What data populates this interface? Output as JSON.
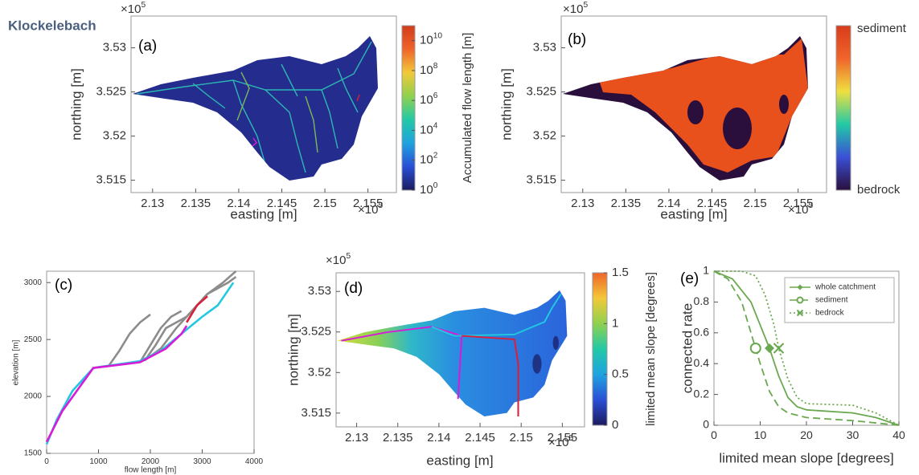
{
  "header": {
    "title": "Klockelebach"
  },
  "chart_data": [
    {
      "type": "map",
      "panel_label": "(a)",
      "xlabel": "easting [m]",
      "ylabel": "northing [m]",
      "x_multiplier": {
        "base": "×10",
        "power": "5"
      },
      "y_multiplier": {
        "base": "×10",
        "power": "5"
      },
      "xlim": [
        2.1275,
        2.1583
      ],
      "ylim": [
        3.5136,
        3.5336
      ],
      "xticks": [
        2.13,
        2.135,
        2.14,
        2.145,
        2.15,
        2.155
      ],
      "yticks": [
        3.515,
        3.52,
        3.525,
        3.53
      ],
      "colorbar": {
        "label": "Accumulated flow length [m]",
        "log_scale": true,
        "lim": [
          1,
          100000000000.0
        ],
        "ticks": [
          {
            "value": 1,
            "label": "10",
            "power": "0"
          },
          {
            "value": 100,
            "label": "10",
            "power": "2"
          },
          {
            "value": 10000,
            "label": "10",
            "power": "4"
          },
          {
            "value": 1000000,
            "label": "10",
            "power": "6"
          },
          {
            "value": 100000000,
            "label": "10",
            "power": "8"
          },
          {
            "value": 10000000000,
            "label": "10",
            "power": "10"
          }
        ],
        "colors": [
          "#1b1b5e",
          "#2a4fd6",
          "#1fa3e0",
          "#22c9a6",
          "#8fd14f",
          "#f2c938",
          "#f0642a",
          "#d23b1b"
        ]
      }
    },
    {
      "type": "map",
      "panel_label": "(b)",
      "xlabel": "easting [m]",
      "ylabel": "northing [m]",
      "x_multiplier": {
        "base": "×10",
        "power": "5"
      },
      "y_multiplier": {
        "base": "×10",
        "power": "5"
      },
      "xlim": [
        2.1275,
        2.1583
      ],
      "ylim": [
        3.5136,
        3.5336
      ],
      "xticks": [
        2.13,
        2.135,
        2.14,
        2.145,
        2.15,
        2.155
      ],
      "yticks": [
        3.515,
        3.52,
        3.525,
        3.53
      ],
      "colorbar": {
        "top_label": "sediment",
        "bottom_label": "bedrock",
        "colors": [
          "#2a0f3d",
          "#3b4fd6",
          "#22c9a6",
          "#f0e040",
          "#f0642a",
          "#d93b1b"
        ]
      }
    },
    {
      "type": "line",
      "panel_label": "(c)",
      "xlabel": "flow length [m]",
      "ylabel": "elevation [m]",
      "xlim": [
        0,
        4000
      ],
      "ylim": [
        1500,
        3100
      ],
      "xticks": [
        0,
        1000,
        2000,
        3000,
        4000
      ],
      "yticks": [
        1500,
        2000,
        2500,
        3000
      ],
      "series": [
        {
          "color": "#8c8c8c",
          "x": [
            900,
            1200,
            1600,
            1900,
            2200,
            2500,
            2800,
            3100,
            3400,
            3650
          ],
          "values": [
            2250,
            2270,
            2290,
            2320,
            2420,
            2600,
            2750,
            2900,
            3000,
            3100
          ]
        },
        {
          "color": "#8c8c8c",
          "x": [
            1900,
            2100,
            2300,
            2500,
            2700,
            2900,
            3100,
            3300,
            3500,
            3650
          ],
          "values": [
            2320,
            2450,
            2600,
            2650,
            2700,
            2800,
            2900,
            2950,
            3000,
            3050
          ]
        },
        {
          "color": "#8c8c8c",
          "x": [
            1200,
            1400,
            1600,
            1800,
            2000
          ],
          "values": [
            2270,
            2400,
            2550,
            2650,
            2720
          ]
        },
        {
          "color": "#8c8c8c",
          "x": [
            1800,
            2000,
            2200,
            2400,
            2600
          ],
          "values": [
            2300,
            2450,
            2600,
            2700,
            2750
          ]
        },
        {
          "color": "#22c7e0",
          "x": [
            0,
            200,
            500,
            900,
            1200,
            1800,
            2200,
            2600,
            3000,
            3300,
            3600
          ],
          "values": [
            1580,
            1800,
            2050,
            2250,
            2270,
            2310,
            2400,
            2550,
            2700,
            2800,
            3000
          ]
        },
        {
          "color": "#d81bd8",
          "x": [
            0,
            300,
            900,
            1800,
            2300,
            2600,
            2700
          ],
          "values": [
            1600,
            1870,
            2250,
            2300,
            2420,
            2550,
            2620
          ]
        },
        {
          "color": "#d8203a",
          "x": [
            2700,
            2900,
            3100
          ],
          "values": [
            2650,
            2800,
            2880
          ]
        }
      ]
    },
    {
      "type": "map",
      "panel_label": "(d)",
      "xlabel": "easting [m]",
      "ylabel": "northing [m]",
      "x_multiplier": {
        "base": "×10",
        "power": "5"
      },
      "y_multiplier": {
        "base": "×10",
        "power": "5"
      },
      "xlim": [
        2.1275,
        2.1577
      ],
      "ylim": [
        3.5133,
        3.5323
      ],
      "xticks": [
        2.13,
        2.135,
        2.14,
        2.145,
        2.15,
        2.155
      ],
      "yticks": [
        3.515,
        3.52,
        3.525,
        3.53
      ],
      "colorbar": {
        "label": "limited mean slope [degrees]",
        "log_scale": false,
        "lim": [
          0,
          1.5
        ],
        "ticks": [
          0,
          0.5,
          1,
          1.5
        ],
        "colors": [
          "#1b1b5e",
          "#2a4fd6",
          "#1fa3e0",
          "#22c9a6",
          "#8fd14f",
          "#f2c938",
          "#f0642a"
        ]
      }
    },
    {
      "type": "line",
      "panel_label": "(e)",
      "xlabel": "limited mean slope [degrees]",
      "ylabel": "connected rate",
      "xlim": [
        0,
        40
      ],
      "ylim": [
        0,
        1
      ],
      "xticks": [
        0,
        10,
        20,
        30,
        40
      ],
      "yticks": [
        0,
        0.2,
        0.4,
        0.6,
        0.8,
        1
      ],
      "legend": "upper right",
      "series": [
        {
          "name": "whole catchment",
          "color": "#6aa84f",
          "dash": "solid",
          "marker": {
            "symbol": "diamond",
            "x": 12,
            "y": 0.5
          },
          "x": [
            0,
            4,
            8,
            10,
            12,
            14,
            16,
            18,
            20,
            30,
            35,
            40
          ],
          "values": [
            1,
            0.95,
            0.8,
            0.65,
            0.5,
            0.32,
            0.18,
            0.12,
            0.1,
            0.08,
            0.05,
            0
          ]
        },
        {
          "name": "sediment",
          "color": "#6aa84f",
          "dash": "dashed",
          "marker": {
            "symbol": "circle",
            "x": 9,
            "y": 0.5
          },
          "x": [
            0,
            3,
            6,
            8,
            9,
            10,
            12,
            14,
            16,
            20,
            30,
            40
          ],
          "values": [
            1,
            0.95,
            0.8,
            0.6,
            0.5,
            0.4,
            0.22,
            0.12,
            0.08,
            0.05,
            0.03,
            0
          ]
        },
        {
          "name": "bedrock",
          "color": "#6aa84f",
          "dash": "dotted",
          "marker": {
            "symbol": "x",
            "x": 14,
            "y": 0.5
          },
          "x": [
            0,
            6,
            9,
            11,
            13,
            14,
            16,
            18,
            20,
            30,
            35,
            40
          ],
          "values": [
            1,
            1,
            0.97,
            0.85,
            0.65,
            0.5,
            0.3,
            0.18,
            0.14,
            0.13,
            0.08,
            0
          ]
        }
      ]
    }
  ]
}
